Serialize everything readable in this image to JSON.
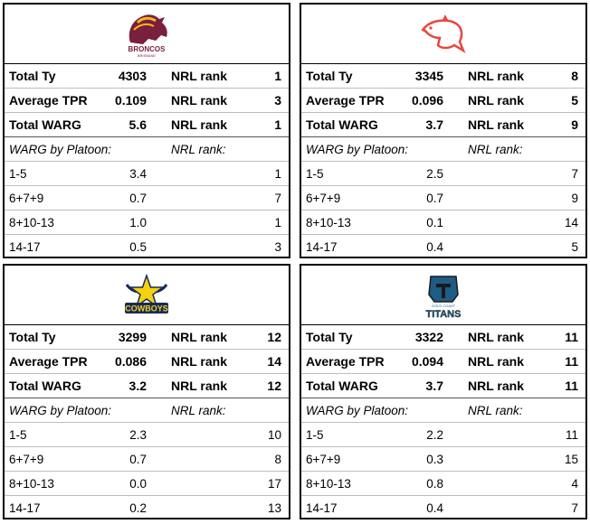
{
  "teams": [
    {
      "id": "broncos",
      "logo": {
        "icon": "broncos-horse-icon",
        "text": "BRONCOS",
        "sub": "BRISBANE",
        "color": "#7a1f3d",
        "accent": "#f2b81b"
      },
      "summary": [
        {
          "label": "Total Ty",
          "value": "4303",
          "rank_label": "NRL rank",
          "rank": "1"
        },
        {
          "label": "Average TPR",
          "value": "0.109",
          "rank_label": "NRL rank",
          "rank": "3"
        },
        {
          "label": "Total WARG",
          "value": "5.6",
          "rank_label": "NRL rank",
          "rank": "1"
        }
      ],
      "platoon_header": {
        "label": "WARG by Platoon:",
        "rank_label": "NRL rank:"
      },
      "platoons": [
        {
          "label": "1-5",
          "value": "3.4",
          "rank": "1"
        },
        {
          "label": "6+7+9",
          "value": "0.7",
          "rank": "7"
        },
        {
          "label": "8+10-13",
          "value": "1.0",
          "rank": "1"
        },
        {
          "label": "14-17",
          "value": "0.5",
          "rank": "3"
        }
      ]
    },
    {
      "id": "dolphins",
      "logo": {
        "icon": "dolphin-icon",
        "color": "#e8473f"
      },
      "summary": [
        {
          "label": "Total Ty",
          "value": "3345",
          "rank_label": "NRL rank",
          "rank": "8"
        },
        {
          "label": "Average TPR",
          "value": "0.096",
          "rank_label": "NRL rank",
          "rank": "5"
        },
        {
          "label": "Total WARG",
          "value": "3.7",
          "rank_label": "NRL rank",
          "rank": "9"
        }
      ],
      "platoon_header": {
        "label": "WARG by Platoon:",
        "rank_label": "NRL rank:"
      },
      "platoons": [
        {
          "label": "1-5",
          "value": "2.5",
          "rank": "7"
        },
        {
          "label": "6+7+9",
          "value": "0.7",
          "rank": "9"
        },
        {
          "label": "8+10-13",
          "value": "0.1",
          "rank": "14"
        },
        {
          "label": "14-17",
          "value": "0.4",
          "rank": "5"
        }
      ]
    },
    {
      "id": "cowboys",
      "logo": {
        "icon": "cowboys-star-icon",
        "text": "COWBOYS",
        "color": "#1a2a5c",
        "accent": "#f5d20f"
      },
      "summary": [
        {
          "label": "Total Ty",
          "value": "3299",
          "rank_label": "NRL rank",
          "rank": "12"
        },
        {
          "label": "Average TPR",
          "value": "0.086",
          "rank_label": "NRL rank",
          "rank": "14"
        },
        {
          "label": "Total WARG",
          "value": "3.2",
          "rank_label": "NRL rank",
          "rank": "12"
        }
      ],
      "platoon_header": {
        "label": "WARG by Platoon:",
        "rank_label": "NRL rank:"
      },
      "platoons": [
        {
          "label": "1-5",
          "value": "2.3",
          "rank": "10"
        },
        {
          "label": "6+7+9",
          "value": "0.7",
          "rank": "8"
        },
        {
          "label": "8+10-13",
          "value": "0.0",
          "rank": "17"
        },
        {
          "label": "14-17",
          "value": "0.2",
          "rank": "13"
        }
      ]
    },
    {
      "id": "titans",
      "logo": {
        "icon": "titans-helmet-icon",
        "text": "TITANS",
        "sub": "GOLD COAST",
        "color": "#1d5c85",
        "accent": "#1a1a1a"
      },
      "summary": [
        {
          "label": "Total Ty",
          "value": "3322",
          "rank_label": "NRL rank",
          "rank": "11"
        },
        {
          "label": "Average TPR",
          "value": "0.094",
          "rank_label": "NRL rank",
          "rank": "11"
        },
        {
          "label": "Total WARG",
          "value": "3.7",
          "rank_label": "NRL rank",
          "rank": "11"
        }
      ],
      "platoon_header": {
        "label": "WARG by Platoon:",
        "rank_label": "NRL rank:"
      },
      "platoons": [
        {
          "label": "1-5",
          "value": "2.2",
          "rank": "11"
        },
        {
          "label": "6+7+9",
          "value": "0.3",
          "rank": "15"
        },
        {
          "label": "8+10-13",
          "value": "0.8",
          "rank": "4"
        },
        {
          "label": "14-17",
          "value": "0.4",
          "rank": "7"
        }
      ]
    }
  ]
}
